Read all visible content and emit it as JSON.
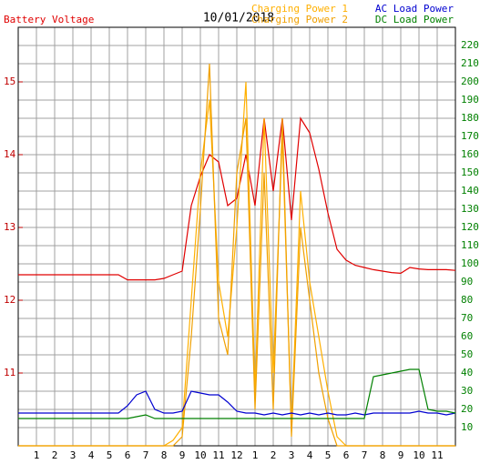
{
  "chart_data": {
    "type": "line",
    "title": "10/01/2018",
    "x": [
      0,
      0.5,
      1,
      1.5,
      2,
      2.5,
      3,
      3.5,
      4,
      4.5,
      5,
      5.5,
      6,
      6.5,
      7,
      7.5,
      8,
      8.5,
      9,
      9.5,
      10,
      10.5,
      11,
      11.5,
      12,
      12.5,
      13,
      13.5,
      14,
      14.5,
      15,
      15.5,
      16,
      16.5,
      17,
      17.5,
      18,
      18.5,
      19,
      19.5,
      20,
      20.5,
      21,
      21.5,
      22,
      22.5,
      23,
      23.5,
      24
    ],
    "xlim": [
      0,
      24
    ],
    "xticks": [
      1,
      2,
      3,
      4,
      5,
      6,
      7,
      8,
      9,
      10,
      11,
      12,
      {
        "value": 13,
        "label": "1"
      },
      {
        "value": 14,
        "label": "2"
      },
      {
        "value": 15,
        "label": "3"
      },
      {
        "value": 16,
        "label": "4"
      },
      {
        "value": 17,
        "label": "5"
      },
      {
        "value": 18,
        "label": "6"
      },
      {
        "value": 19,
        "label": "7"
      },
      {
        "value": 20,
        "label": "8"
      },
      {
        "value": 21,
        "label": "9"
      },
      {
        "value": 22,
        "label": "10"
      },
      {
        "value": 23,
        "label": "11"
      }
    ],
    "ylim": [
      10,
      15.75
    ],
    "yticks": [
      11,
      12,
      13,
      14,
      15
    ],
    "y2lim": [
      0,
      230
    ],
    "y2ticks": [
      10,
      20,
      30,
      40,
      50,
      60,
      70,
      80,
      90,
      100,
      110,
      120,
      130,
      140,
      150,
      160,
      170,
      180,
      190,
      200,
      210,
      220
    ],
    "grid": true,
    "series": [
      {
        "name": "Battery Voltage",
        "color": "#e00000",
        "axis": "y",
        "values": [
          12.35,
          12.35,
          12.35,
          12.35,
          12.35,
          12.35,
          12.35,
          12.35,
          12.35,
          12.35,
          12.35,
          12.35,
          12.28,
          12.28,
          12.28,
          12.28,
          12.3,
          12.35,
          12.4,
          13.3,
          13.7,
          14.0,
          13.9,
          13.3,
          13.4,
          14.0,
          13.3,
          14.5,
          13.5,
          14.5,
          13.1,
          14.5,
          14.3,
          13.8,
          13.2,
          12.7,
          12.55,
          12.48,
          12.45,
          12.42,
          12.4,
          12.38,
          12.37,
          12.45,
          12.43,
          12.42,
          12.42,
          12.42,
          12.41
        ]
      },
      {
        "name": "Charging Power 1",
        "color": "#ffb000",
        "axis": "y2",
        "values": [
          0,
          0,
          0,
          0,
          0,
          0,
          0,
          0,
          0,
          0,
          0,
          0,
          0,
          0,
          0,
          0,
          0,
          3,
          10,
          80,
          150,
          190,
          90,
          60,
          120,
          200,
          30,
          180,
          40,
          170,
          10,
          140,
          90,
          60,
          30,
          5,
          0,
          0,
          0,
          0,
          0,
          0,
          0,
          0,
          0,
          0,
          0,
          0,
          0
        ]
      },
      {
        "name": "Charging Power 2",
        "color": "#f0a000",
        "axis": "y2",
        "values": [
          0,
          0,
          0,
          0,
          0,
          0,
          0,
          0,
          0,
          0,
          0,
          0,
          0,
          0,
          0,
          0,
          0,
          0,
          5,
          60,
          130,
          210,
          70,
          50,
          150,
          180,
          20,
          150,
          20,
          180,
          5,
          120,
          80,
          40,
          15,
          0,
          0,
          0,
          0,
          0,
          0,
          0,
          0,
          0,
          0,
          0,
          0,
          0,
          0
        ]
      },
      {
        "name": "AC Load Power",
        "color": "#0000d0",
        "axis": "y2",
        "values": [
          18,
          18,
          18,
          18,
          18,
          18,
          18,
          18,
          18,
          18,
          18,
          18,
          22,
          28,
          30,
          20,
          18,
          18,
          19,
          30,
          29,
          28,
          28,
          24,
          19,
          18,
          18,
          17,
          18,
          17,
          18,
          17,
          18,
          17,
          18,
          17,
          17,
          18,
          17,
          18,
          18,
          18,
          18,
          18,
          19,
          18,
          18,
          17,
          18
        ]
      },
      {
        "name": "DC Load Power",
        "color": "#008000",
        "axis": "y2",
        "values": [
          15,
          15,
          15,
          15,
          15,
          15,
          15,
          15,
          15,
          15,
          15,
          15,
          15,
          16,
          17,
          15,
          15,
          15,
          15,
          15,
          15,
          15,
          15,
          15,
          15,
          15,
          15,
          15,
          15,
          15,
          15,
          15,
          15,
          15,
          15,
          15,
          15,
          15,
          15,
          38,
          39,
          40,
          41,
          42,
          42,
          20,
          19,
          19,
          18
        ]
      }
    ]
  }
}
